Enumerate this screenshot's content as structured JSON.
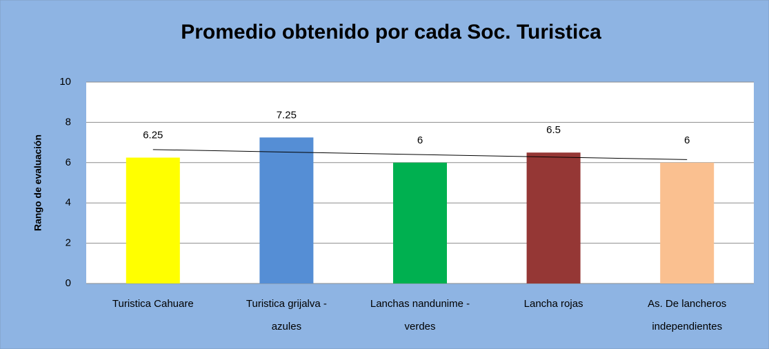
{
  "chart_data": {
    "type": "bar",
    "title": "Promedio obtenido por cada Soc. Turistica",
    "y_label": "Rango de evaluación",
    "categories": [
      "Turistica Cahuare",
      "Turistica grijalva - azules",
      "Lanchas nandunime - verdes",
      "Lancha rojas",
      "As. De lancheros independientes"
    ],
    "values": [
      6.25,
      7.25,
      6,
      6.5,
      6
    ],
    "colors": [
      "#ffff00",
      "#558ed5",
      "#00b050",
      "#953735",
      "#fac090"
    ],
    "ylim": [
      0,
      10
    ],
    "yticks": [
      0,
      2,
      4,
      6,
      8,
      10
    ],
    "grid": true,
    "trendline": "linear"
  }
}
